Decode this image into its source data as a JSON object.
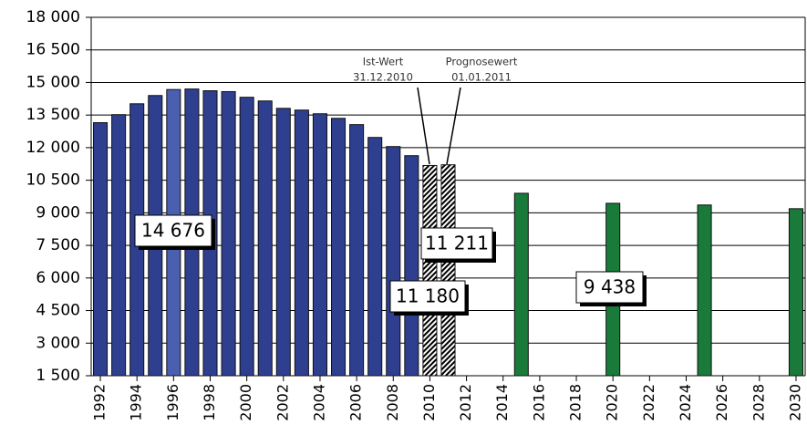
{
  "chart_data": {
    "type": "bar",
    "x": [
      1992,
      1993,
      1994,
      1995,
      1996,
      1997,
      1998,
      1999,
      2000,
      2001,
      2002,
      2003,
      2004,
      2005,
      2006,
      2007,
      2008,
      2009,
      2010,
      2011,
      2015,
      2020,
      2025,
      2030
    ],
    "values": [
      13150,
      13520,
      14020,
      14400,
      14676,
      14700,
      14620,
      14580,
      14320,
      14150,
      13810,
      13730,
      13560,
      13350,
      13060,
      12470,
      12050,
      11630,
      11180,
      11211,
      9900,
      9438,
      9360,
      9190
    ],
    "value_labels": [
      null,
      null,
      null,
      null,
      "14 676",
      null,
      null,
      null,
      null,
      null,
      null,
      null,
      null,
      null,
      null,
      null,
      null,
      null,
      "11 180",
      "11 211",
      null,
      "9 438",
      null,
      null
    ],
    "colors": [
      "#2e3f8f",
      "#2e3f8f",
      "#2e3f8f",
      "#2e3f8f",
      "#4a5fb0",
      "#2e3f8f",
      "#2e3f8f",
      "#2e3f8f",
      "#2e3f8f",
      "#2e3f8f",
      "#2e3f8f",
      "#2e3f8f",
      "#2e3f8f",
      "#2e3f8f",
      "#2e3f8f",
      "#2e3f8f",
      "#2e3f8f",
      "#2e3f8f",
      "#2e4fb0",
      "#1e8a44",
      "#1a7a3a",
      "#1a7a3a",
      "#1a7a3a",
      "#1a7a3a"
    ],
    "hatched": [
      false,
      false,
      false,
      false,
      false,
      false,
      false,
      false,
      false,
      false,
      false,
      false,
      false,
      false,
      false,
      false,
      false,
      false,
      true,
      true,
      false,
      false,
      false,
      false
    ],
    "annotations": [
      [
        "Ist-Wert",
        "31.12.2010"
      ],
      [
        "Prognosewert",
        "01.01.2011"
      ]
    ],
    "xlim": [
      1991.5,
      2030.5
    ],
    "xticks": [
      1992,
      1994,
      1996,
      1998,
      2000,
      2002,
      2004,
      2006,
      2008,
      2010,
      2012,
      2014,
      2016,
      2018,
      2020,
      2022,
      2024,
      2026,
      2028,
      2030
    ],
    "ylim": [
      1500,
      18000
    ],
    "yticks": [
      {
        "value": 1500,
        "label": "1 500"
      },
      {
        "value": 3000,
        "label": "3 000"
      },
      {
        "value": 4500,
        "label": "4 500"
      },
      {
        "value": 6000,
        "label": "6 000"
      },
      {
        "value": 7500,
        "label": "7 500"
      },
      {
        "value": 9000,
        "label": "9 000"
      },
      {
        "value": 10500,
        "label": "10 500"
      },
      {
        "value": 12000,
        "label": "12 000"
      },
      {
        "value": 13500,
        "label": "13 500"
      },
      {
        "value": 15000,
        "label": "15 000"
      },
      {
        "value": 16500,
        "label": "16 500"
      },
      {
        "value": 18000,
        "label": "18 000"
      }
    ],
    "grid": true
  }
}
